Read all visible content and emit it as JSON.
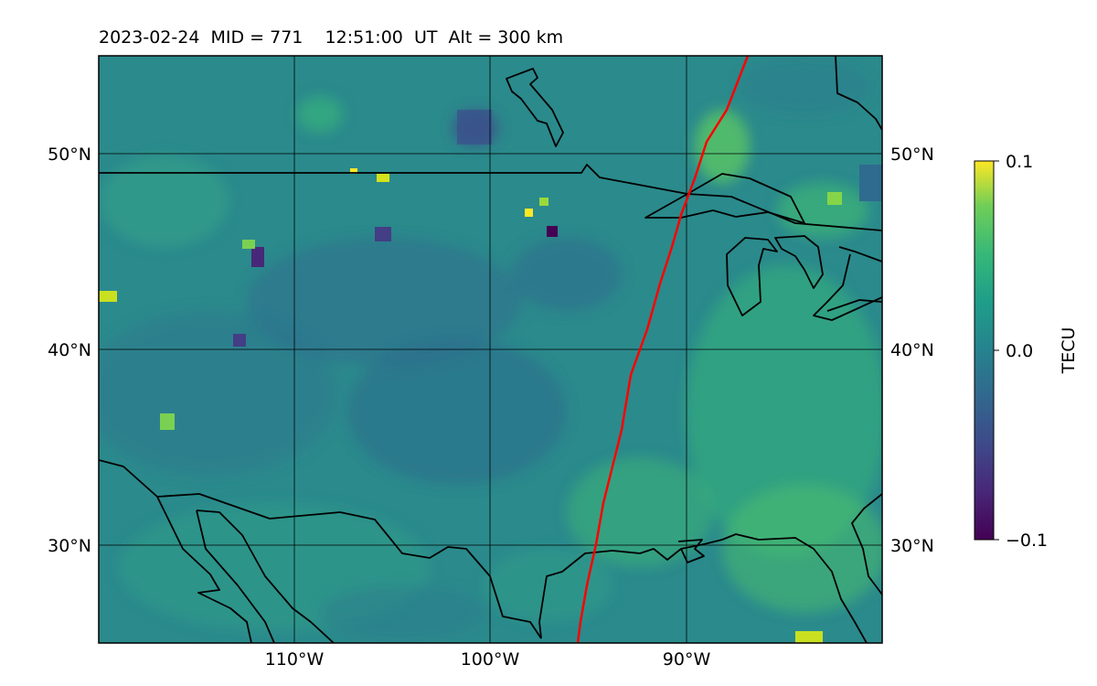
{
  "title": "2023-02-24  MID = 771    12:51:00  UT  Alt = 300 km",
  "map": {
    "lon_range": [
      -120,
      -80
    ],
    "lat_range": [
      25,
      55
    ],
    "lat_ticks": [
      {
        "value": 50,
        "label": "50°N"
      },
      {
        "value": 40,
        "label": "40°N"
      },
      {
        "value": 30,
        "label": "30°N"
      }
    ],
    "lon_ticks": [
      {
        "value": -110,
        "label": "110°W"
      },
      {
        "value": -100,
        "label": "100°W"
      },
      {
        "value": -90,
        "label": "90°W"
      }
    ],
    "terminator_color": "#ff0000",
    "coastline_color": "#000000"
  },
  "colorbar": {
    "label": "TECU",
    "colormap": "viridis",
    "ticks": [
      {
        "value": 0.1,
        "label": "0.1"
      },
      {
        "value": 0.0,
        "label": "0.0"
      },
      {
        "value": -0.1,
        "label": "−0.1"
      }
    ],
    "range": [
      -0.1,
      0.1
    ]
  }
}
